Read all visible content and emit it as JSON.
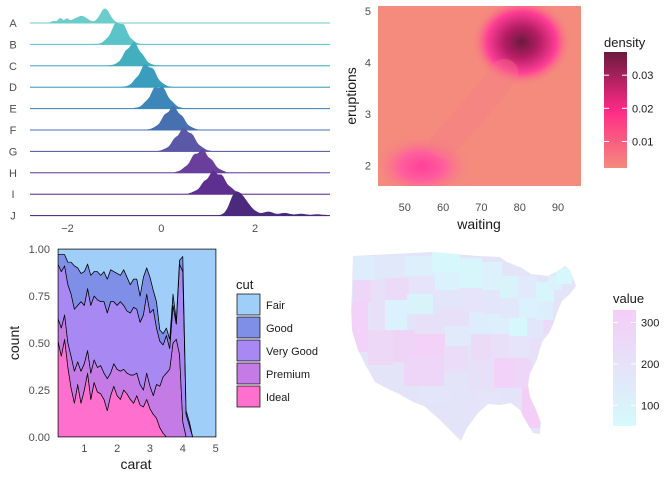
{
  "chart_data": [
    {
      "type": "area",
      "subtype": "ridgeline",
      "categories": [
        "A",
        "B",
        "C",
        "D",
        "E",
        "F",
        "G",
        "H",
        "I",
        "J"
      ],
      "x_ticks": [
        -2,
        0,
        2
      ],
      "xlim": [
        -2.8,
        3.6
      ],
      "peaks": [
        -1.2,
        -0.9,
        -0.6,
        -0.3,
        -0.05,
        0.25,
        0.5,
        0.85,
        1.15,
        1.6
      ],
      "colors": [
        "#6bcccb",
        "#5bc4c8",
        "#43aebe",
        "#3a9dbd",
        "#3c86b9",
        "#4770b0",
        "#5b58a7",
        "#6a3f9c",
        "#5d2f8e",
        "#4b2a7d"
      ],
      "title": "",
      "xlabel": "",
      "ylabel": "",
      "grid": false
    },
    {
      "type": "heatmap",
      "subtype": "2d-density",
      "xlabel": "waiting",
      "ylabel": "eruptions",
      "xlim": [
        43,
        96
      ],
      "ylim": [
        1.6,
        5.1
      ],
      "x_ticks": [
        50,
        60,
        70,
        80,
        90
      ],
      "y_ticks": [
        2,
        3,
        4,
        5
      ],
      "modes": [
        {
          "x": 54.5,
          "y": 1.98,
          "density": 0.026
        },
        {
          "x": 80.5,
          "y": 4.4,
          "density": 0.037
        }
      ],
      "legend": {
        "title": "density",
        "ticks": [
          "0.01",
          "0.02",
          "0.03"
        ],
        "tick_values": [
          0.01,
          0.02,
          0.03
        ],
        "range": [
          0.002,
          0.037
        ],
        "position": "right"
      },
      "colors": {
        "low": "#f48b7d",
        "mid": "#ff2a86",
        "high": "#6a1a3e"
      }
    },
    {
      "type": "area",
      "subtype": "stacked-fill-density",
      "xlabel": "carat",
      "ylabel": "count",
      "xlim": [
        0.2,
        5.01
      ],
      "ylim": [
        0,
        1
      ],
      "x_ticks": [
        1,
        2,
        3,
        4,
        5
      ],
      "y_ticks": [
        "0.00",
        "0.25",
        "0.50",
        "0.75",
        "1.00"
      ],
      "x": [
        0.2,
        0.3,
        0.4,
        0.5,
        0.6,
        0.7,
        0.8,
        0.9,
        1.0,
        1.1,
        1.2,
        1.3,
        1.4,
        1.5,
        1.6,
        1.7,
        1.8,
        1.9,
        2.0,
        2.1,
        2.2,
        2.3,
        2.4,
        2.5,
        2.6,
        2.7,
        2.8,
        2.9,
        3.0,
        3.1,
        3.2,
        3.3,
        3.4,
        3.5,
        3.6,
        3.7,
        3.8,
        3.9,
        4.0,
        4.1,
        4.2,
        4.3,
        5.01
      ],
      "series": [
        {
          "name": "Ideal",
          "color": "#ff6fce",
          "values": [
            0.51,
            0.43,
            0.52,
            0.37,
            0.26,
            0.18,
            0.28,
            0.18,
            0.25,
            0.34,
            0.2,
            0.29,
            0.24,
            0.23,
            0.2,
            0.14,
            0.22,
            0.27,
            0.22,
            0.2,
            0.25,
            0.23,
            0.2,
            0.18,
            0.22,
            0.17,
            0.16,
            0.2,
            0.15,
            0.12,
            0.1,
            0.05,
            0.02,
            0,
            0,
            0,
            0,
            0,
            0,
            0,
            0,
            0,
            0
          ]
        },
        {
          "name": "Premium",
          "color": "#c57be6",
          "values": [
            0.12,
            0.15,
            0.13,
            0.13,
            0.17,
            0.17,
            0.12,
            0.17,
            0.14,
            0.12,
            0.14,
            0.12,
            0.13,
            0.15,
            0.14,
            0.17,
            0.12,
            0.12,
            0.14,
            0.15,
            0.11,
            0.11,
            0.13,
            0.15,
            0.12,
            0.11,
            0.09,
            0.14,
            0.12,
            0.1,
            0.18,
            0.22,
            0.3,
            0.34,
            0.36,
            0.5,
            0.52,
            0.44,
            0.08,
            0,
            0,
            0,
            0
          ]
        },
        {
          "name": "Very Good",
          "color": "#a888f2",
          "values": [
            0.29,
            0.3,
            0.26,
            0.31,
            0.33,
            0.33,
            0.3,
            0.37,
            0.31,
            0.33,
            0.36,
            0.34,
            0.36,
            0.34,
            0.38,
            0.35,
            0.38,
            0.33,
            0.34,
            0.37,
            0.34,
            0.33,
            0.33,
            0.36,
            0.34,
            0.33,
            0.4,
            0.42,
            0.39,
            0.46,
            0.3,
            0.24,
            0.17,
            0.2,
            0.11,
            0.2,
            0.08,
            0.48,
            0.8,
            0.12,
            0.06,
            0,
            0
          ]
        },
        {
          "name": "Good",
          "color": "#7f8fe8",
          "values": [
            0.05,
            0.09,
            0.06,
            0.12,
            0.17,
            0.23,
            0.2,
            0.15,
            0.18,
            0.13,
            0.16,
            0.13,
            0.15,
            0.14,
            0.16,
            0.18,
            0.17,
            0.16,
            0.17,
            0.14,
            0.19,
            0.18,
            0.15,
            0.15,
            0.16,
            0.14,
            0.2,
            0.14,
            0.19,
            0.1,
            0.14,
            0.06,
            0.06,
            0.04,
            0.05,
            0.06,
            0.02,
            0.02,
            0.08,
            0.02,
            0.02,
            0,
            0
          ]
        },
        {
          "name": "Fair",
          "color": "#9fcff8",
          "values": [
            0.03,
            0.03,
            0.03,
            0.07,
            0.07,
            0.09,
            0.1,
            0.13,
            0.12,
            0.08,
            0.14,
            0.12,
            0.12,
            0.14,
            0.12,
            0.16,
            0.11,
            0.12,
            0.13,
            0.14,
            0.11,
            0.15,
            0.19,
            0.16,
            0.16,
            0.25,
            0.15,
            0.1,
            0.15,
            0.22,
            0.28,
            0.43,
            0.45,
            0.42,
            0.48,
            0.24,
            0.38,
            0.06,
            0.04,
            0.86,
            0.92,
            1.0,
            1.0
          ]
        }
      ],
      "legend": {
        "title": "cut",
        "entries": [
          "Fair",
          "Good",
          "Very Good",
          "Premium",
          "Ideal"
        ],
        "colors": [
          "#9fcff8",
          "#7f8fe8",
          "#a888f2",
          "#c57be6",
          "#ff6fce"
        ],
        "position": "right"
      }
    },
    {
      "type": "map",
      "subtype": "choropleth",
      "region": "contiguous United States",
      "legend": {
        "title": "value",
        "ticks": [
          "100",
          "200",
          "300"
        ],
        "tick_values": [
          100,
          200,
          300
        ],
        "range": [
          50,
          330
        ],
        "position": "right"
      },
      "colors": {
        "low": "#d4fafc",
        "high": "#f5cdf7"
      }
    }
  ]
}
